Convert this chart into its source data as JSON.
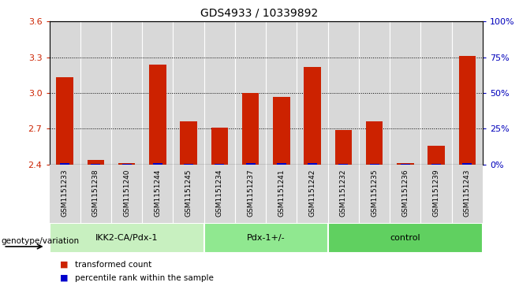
{
  "title": "GDS4933 / 10339892",
  "samples": [
    "GSM1151233",
    "GSM1151238",
    "GSM1151240",
    "GSM1151244",
    "GSM1151245",
    "GSM1151234",
    "GSM1151237",
    "GSM1151241",
    "GSM1151242",
    "GSM1151232",
    "GSM1151235",
    "GSM1151236",
    "GSM1151239",
    "GSM1151243"
  ],
  "red_values": [
    3.13,
    2.44,
    2.41,
    3.24,
    2.76,
    2.71,
    3.0,
    2.97,
    3.22,
    2.69,
    2.76,
    2.41,
    2.56,
    3.31
  ],
  "blue_percent": [
    10,
    4,
    2,
    10,
    6,
    6,
    10,
    8,
    10,
    6,
    6,
    2,
    4,
    12
  ],
  "y_min": 2.4,
  "y_max": 3.6,
  "y_ticks_red": [
    2.4,
    2.7,
    3.0,
    3.3,
    3.6
  ],
  "y_ticks_blue_vals": [
    0,
    25,
    50,
    75,
    100
  ],
  "groups": [
    {
      "label": "IKK2-CA/Pdx-1",
      "start": 0,
      "end": 5,
      "color": "#c8f0c0"
    },
    {
      "label": "Pdx-1+/-",
      "start": 5,
      "end": 9,
      "color": "#90e890"
    },
    {
      "label": "control",
      "start": 9,
      "end": 14,
      "color": "#60d060"
    }
  ],
  "red_color": "#cc2200",
  "blue_color": "#0000cc",
  "bar_width": 0.55,
  "baseline": 2.4,
  "xlabel_color": "#cc2200",
  "ylabel_right_color": "#0000bb",
  "sample_bg": "#d8d8d8",
  "legend_red": "transformed count",
  "legend_blue": "percentile rank within the sample",
  "genotype_label": "genotype/variation"
}
